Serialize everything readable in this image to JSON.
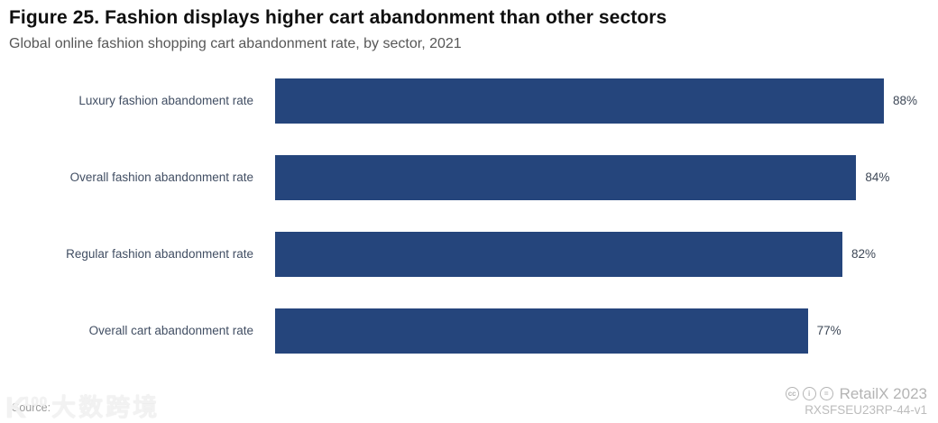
{
  "header": {
    "title": "Figure 25. Fashion displays higher cart abandonment than other sectors",
    "subtitle": "Global online fashion shopping cart abandonment rate, by sector, 2021"
  },
  "chart_data": {
    "type": "bar",
    "orientation": "horizontal",
    "title": "Figure 25. Fashion displays higher cart abandonment than other sectors",
    "subtitle": "Global online fashion shopping cart abandonment rate, by sector, 2021",
    "categories": [
      "Luxury fashion abandoment rate",
      "Overall fashion abandonment rate",
      "Regular fashion abandonment rate",
      "Overall cart abandonment rate"
    ],
    "values": [
      88,
      84,
      82,
      77
    ],
    "value_labels": [
      "88%",
      "84%",
      "82%",
      "77%"
    ],
    "unit": "%",
    "xlabel": "",
    "ylabel": "",
    "grid": false,
    "legend": false,
    "axes_shown": false,
    "bar_color": "#25457c"
  },
  "footer": {
    "source_label": "Source:",
    "watermark": {
      "logo_k": "K",
      "logo_100": "100",
      "cn_text": "大数跨境"
    },
    "license_icons": [
      {
        "name": "cc-icon",
        "glyph": "cc"
      },
      {
        "name": "cc-by-icon",
        "glyph": "i"
      },
      {
        "name": "cc-nd-icon",
        "glyph": "="
      }
    ],
    "attribution": "RetailX 2023",
    "doc_code": "RXSFSEU23RP-44-v1"
  }
}
